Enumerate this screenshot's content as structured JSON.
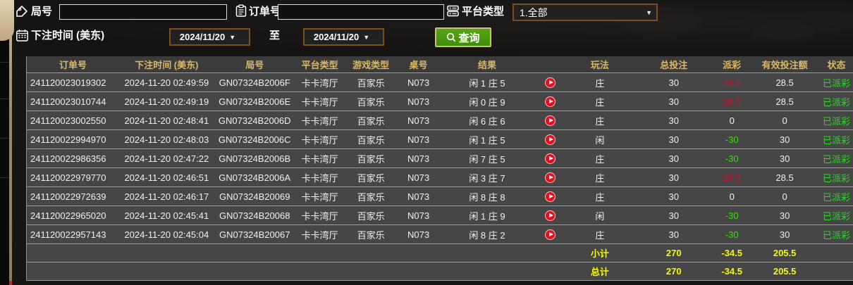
{
  "filters": {
    "round_label": "局号",
    "round_value": "",
    "order_label": "订单号",
    "order_value": "",
    "platform_label": "平台类型",
    "platform_value": "1.全部",
    "bet_time_label": "下注时间 (美东)",
    "date_from": "2024/11/20",
    "to_label": "至",
    "date_to": "2024/11/20",
    "query_label": "查询",
    "select_caret": "▼"
  },
  "icons": {
    "round": "tag-icon",
    "order": "clipboard-icon",
    "platform": "server-icon",
    "bet_time": "calendar-icon",
    "query": "magnifier-icon",
    "video_column": "play-circle-icon"
  },
  "table": {
    "headers": [
      "订单号",
      "下注时间 (美东)",
      "局号",
      "平台类型",
      "游戏类型",
      "桌号",
      "结果",
      "",
      "玩法",
      "总投注",
      "派彩",
      "有效投注额",
      "状态"
    ],
    "rows": [
      {
        "order_no": "241120023019302",
        "bet_time": "2024-11-20 02:49:59",
        "round_no": "GN07324B2006F",
        "platform": "卡卡湾厅",
        "game": "百家乐",
        "table_no": "N073",
        "result": "闲 1 庄 5",
        "play": "庄",
        "total_bet": "30",
        "payout": "28.5",
        "payout_color": "red",
        "valid_bet": "28.5",
        "status": "已派彩"
      },
      {
        "order_no": "241120023010744",
        "bet_time": "2024-11-20 02:49:19",
        "round_no": "GN07324B2006E",
        "platform": "卡卡湾厅",
        "game": "百家乐",
        "table_no": "N073",
        "result": "闲 0 庄 9",
        "play": "庄",
        "total_bet": "30",
        "payout": "28.5",
        "payout_color": "red",
        "valid_bet": "28.5",
        "status": "已派彩"
      },
      {
        "order_no": "241120023002550",
        "bet_time": "2024-11-20 02:48:41",
        "round_no": "GN07324B2006D",
        "platform": "卡卡湾厅",
        "game": "百家乐",
        "table_no": "N073",
        "result": "闲 6 庄 6",
        "play": "庄",
        "total_bet": "30",
        "payout": "0",
        "payout_color": "white",
        "valid_bet": "0",
        "status": "已派彩"
      },
      {
        "order_no": "241120022994970",
        "bet_time": "2024-11-20 02:48:03",
        "round_no": "GN07324B2006C",
        "platform": "卡卡湾厅",
        "game": "百家乐",
        "table_no": "N073",
        "result": "闲 1 庄 5",
        "play": "闲",
        "total_bet": "30",
        "payout": "-30",
        "payout_color": "green",
        "valid_bet": "30",
        "status": "已派彩"
      },
      {
        "order_no": "241120022986356",
        "bet_time": "2024-11-20 02:47:22",
        "round_no": "GN07324B2006B",
        "platform": "卡卡湾厅",
        "game": "百家乐",
        "table_no": "N073",
        "result": "闲 7 庄 5",
        "play": "庄",
        "total_bet": "30",
        "payout": "-30",
        "payout_color": "green",
        "valid_bet": "30",
        "status": "已派彩"
      },
      {
        "order_no": "241120022979770",
        "bet_time": "2024-11-20 02:46:51",
        "round_no": "GN07324B2006A",
        "platform": "卡卡湾厅",
        "game": "百家乐",
        "table_no": "N073",
        "result": "闲 3 庄 7",
        "play": "庄",
        "total_bet": "30",
        "payout": "28.5",
        "payout_color": "red",
        "valid_bet": "28.5",
        "status": "已派彩"
      },
      {
        "order_no": "241120022972639",
        "bet_time": "2024-11-20 02:46:17",
        "round_no": "GN07324B20069",
        "platform": "卡卡湾厅",
        "game": "百家乐",
        "table_no": "N073",
        "result": "闲 8 庄 8",
        "play": "庄",
        "total_bet": "30",
        "payout": "0",
        "payout_color": "white",
        "valid_bet": "0",
        "status": "已派彩"
      },
      {
        "order_no": "241120022965020",
        "bet_time": "2024-11-20 02:45:41",
        "round_no": "GN07324B20068",
        "platform": "卡卡湾厅",
        "game": "百家乐",
        "table_no": "N073",
        "result": "闲 1 庄 9",
        "play": "闲",
        "total_bet": "30",
        "payout": "-30",
        "payout_color": "green",
        "valid_bet": "30",
        "status": "已派彩"
      },
      {
        "order_no": "241120022957143",
        "bet_time": "2024-11-20 02:45:04",
        "round_no": "GN07324B20067",
        "platform": "卡卡湾厅",
        "game": "百家乐",
        "table_no": "N073",
        "result": "闲 8 庄 2",
        "play": "庄",
        "total_bet": "30",
        "payout": "-30",
        "payout_color": "green",
        "valid_bet": "30",
        "status": "已派彩"
      }
    ],
    "summary": [
      {
        "label": "小计",
        "total_bet": "270",
        "payout": "-34.5",
        "valid_bet": "205.5"
      },
      {
        "label": "总计",
        "total_bet": "270",
        "payout": "-34.5",
        "valid_bet": "205.5"
      }
    ]
  },
  "colors": {
    "header_gold": "#d9b967",
    "row_bg": "#464646",
    "payout_win_red": "#c8102e",
    "payout_loss_green": "#38e000",
    "status_green": "#17e517",
    "summary_yellow": "#f8f800",
    "query_button_green": "#4a9a0e",
    "select_border_brown": "#7d4e1c",
    "play_button_red": "#e30f1e"
  }
}
